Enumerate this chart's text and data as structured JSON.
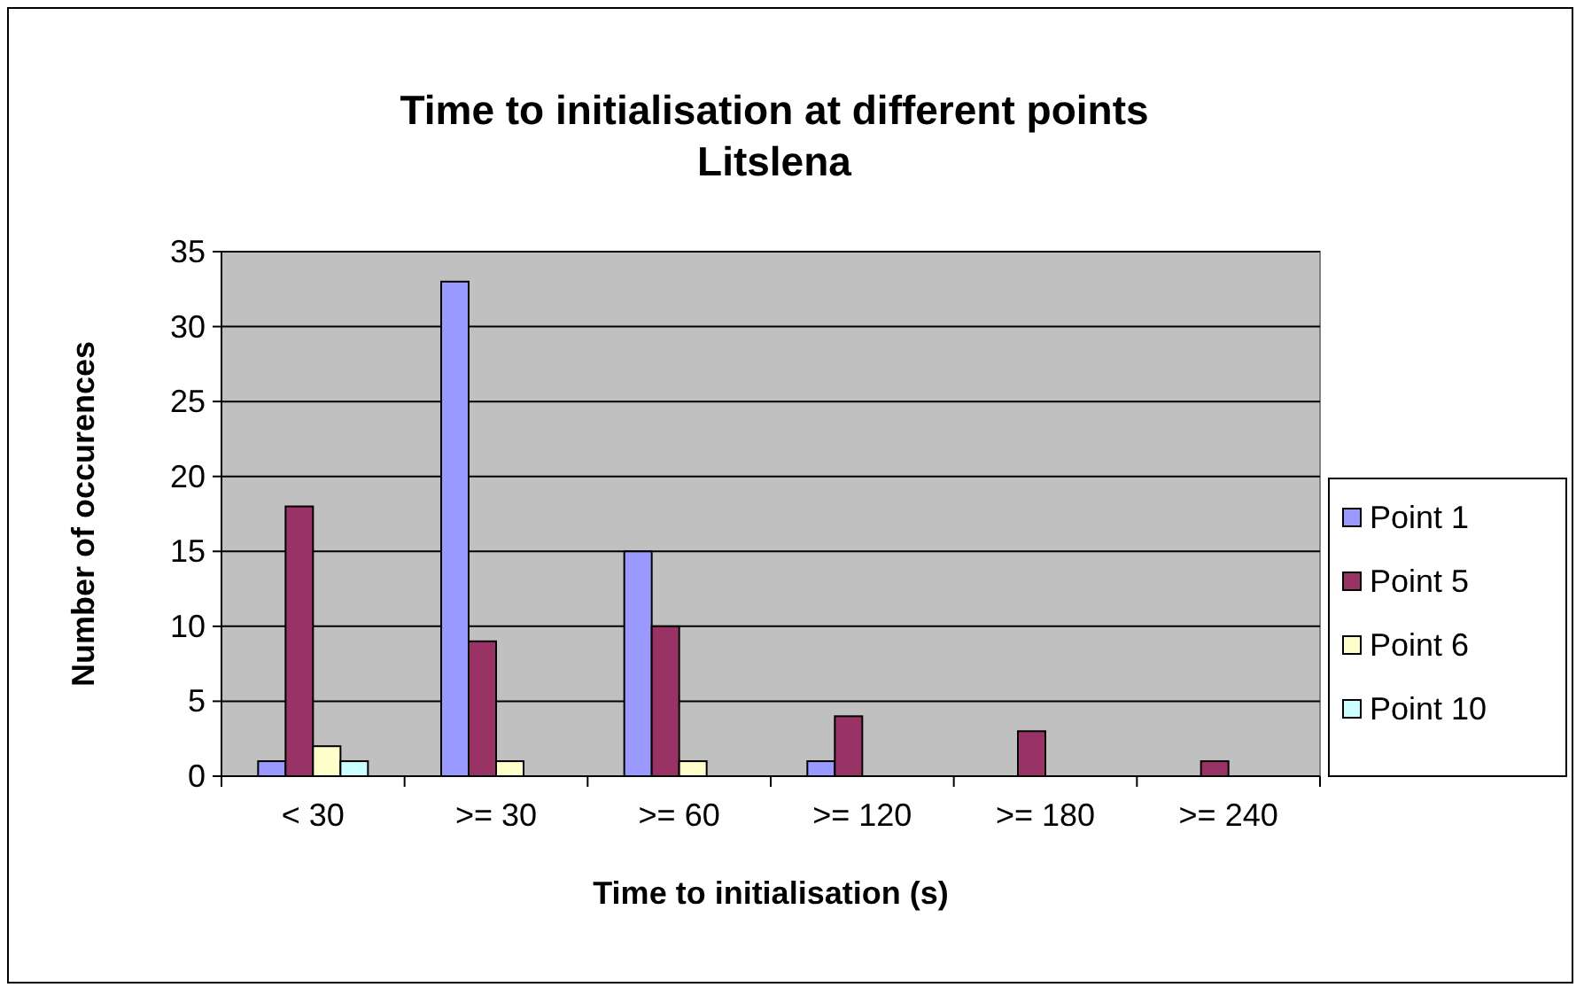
{
  "chart_data": {
    "type": "bar",
    "title": "Time to initialisation at different points",
    "subtitle": "Litslena",
    "xlabel": "Time to initialisation (s)",
    "ylabel": "Number of occurences",
    "categories": [
      "< 30",
      ">= 30",
      ">= 60",
      ">= 120",
      ">= 180",
      ">= 240"
    ],
    "series": [
      {
        "name": "Point 1",
        "color": "#9999ff",
        "values": [
          1,
          33,
          15,
          1,
          0,
          0
        ]
      },
      {
        "name": "Point 5",
        "color": "#993366",
        "values": [
          18,
          9,
          10,
          4,
          3,
          1
        ]
      },
      {
        "name": "Point 6",
        "color": "#ffffcc",
        "values": [
          2,
          1,
          1,
          0,
          0,
          0
        ]
      },
      {
        "name": "Point 10",
        "color": "#ccffff",
        "values": [
          1,
          0,
          0,
          0,
          0,
          0
        ]
      }
    ],
    "ylim": [
      0,
      35
    ],
    "yticks": [
      0,
      5,
      10,
      15,
      20,
      25,
      30,
      35
    ],
    "grid": "y",
    "legend": "right"
  }
}
